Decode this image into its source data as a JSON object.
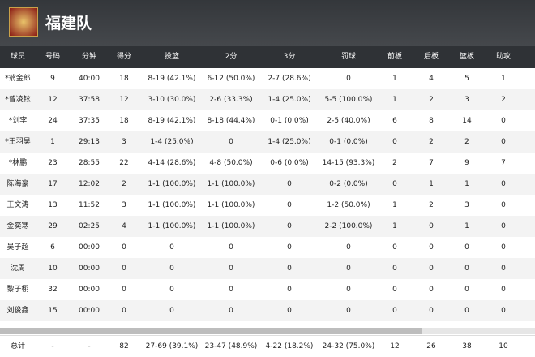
{
  "header": {
    "title": "福建队"
  },
  "table": {
    "columns": [
      "球员",
      "号码",
      "分钟",
      "得分",
      "投篮",
      "2分",
      "3分",
      "罚球",
      "前板",
      "后板",
      "篮板",
      "助攻"
    ],
    "rows": [
      [
        "*翁金郎",
        "9",
        "40:00",
        "18",
        "8-19 (42.1%)",
        "6-12 (50.0%)",
        "2-7 (28.6%)",
        "0",
        "1",
        "4",
        "5",
        "1"
      ],
      [
        "*曾凌铉",
        "12",
        "37:58",
        "12",
        "3-10 (30.0%)",
        "2-6 (33.3%)",
        "1-4 (25.0%)",
        "5-5 (100.0%)",
        "1",
        "2",
        "3",
        "2"
      ],
      [
        "*刘李",
        "24",
        "37:35",
        "18",
        "8-19 (42.1%)",
        "8-18 (44.4%)",
        "0-1 (0.0%)",
        "2-5 (40.0%)",
        "6",
        "8",
        "14",
        "0"
      ],
      [
        "*王羽昊",
        "1",
        "29:13",
        "3",
        "1-4 (25.0%)",
        "0",
        "1-4 (25.0%)",
        "0-1 (0.0%)",
        "0",
        "2",
        "2",
        "0"
      ],
      [
        "*林鹏",
        "23",
        "28:55",
        "22",
        "4-14 (28.6%)",
        "4-8 (50.0%)",
        "0-6 (0.0%)",
        "14-15 (93.3%)",
        "2",
        "7",
        "9",
        "7"
      ],
      [
        "陈海豪",
        "17",
        "12:02",
        "2",
        "1-1 (100.0%)",
        "1-1 (100.0%)",
        "0",
        "0-2 (0.0%)",
        "0",
        "1",
        "1",
        "0"
      ],
      [
        "王文涛",
        "13",
        "11:52",
        "3",
        "1-1 (100.0%)",
        "1-1 (100.0%)",
        "0",
        "1-2 (50.0%)",
        "1",
        "2",
        "3",
        "0"
      ],
      [
        "金奕寒",
        "29",
        "02:25",
        "4",
        "1-1 (100.0%)",
        "1-1 (100.0%)",
        "0",
        "2-2 (100.0%)",
        "1",
        "0",
        "1",
        "0"
      ],
      [
        "吴子超",
        "6",
        "00:00",
        "0",
        "0",
        "0",
        "0",
        "0",
        "0",
        "0",
        "0",
        "0"
      ],
      [
        "沈周",
        "10",
        "00:00",
        "0",
        "0",
        "0",
        "0",
        "0",
        "0",
        "0",
        "0",
        "0"
      ],
      [
        "黎子栩",
        "32",
        "00:00",
        "0",
        "0",
        "0",
        "0",
        "0",
        "0",
        "0",
        "0",
        "0"
      ],
      [
        "刘俊鑫",
        "15",
        "00:00",
        "0",
        "0",
        "0",
        "0",
        "0",
        "0",
        "0",
        "0",
        "0"
      ]
    ],
    "totals": [
      "总计",
      "-",
      "-",
      "82",
      "27-69 (39.1%)",
      "23-47 (48.9%)",
      "4-22 (18.2%)",
      "24-32 (75.0%)",
      "12",
      "26",
      "38",
      "10"
    ]
  }
}
